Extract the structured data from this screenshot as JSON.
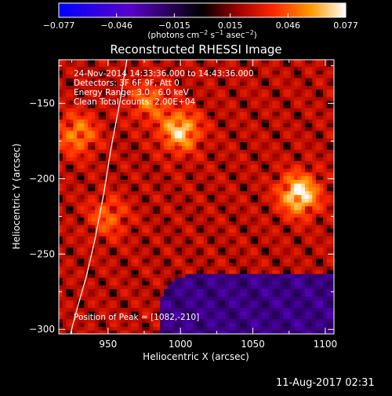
{
  "colorbar": {
    "tick_labels": [
      "−0.077",
      "−0.046",
      "−0.015",
      "0.015",
      "0.046",
      "0.077"
    ],
    "tick_values": [
      -0.077,
      -0.046,
      -0.015,
      0.015,
      0.046,
      0.077
    ],
    "range": [
      -0.077,
      0.077
    ],
    "units_main": "(photons cm",
    "units_exp1": "−2",
    "units_mid": " s",
    "units_exp2": "−1",
    "units_end": " asec",
    "units_exp3": "−2",
    "units_close": ")"
  },
  "chart_data": {
    "type": "heatmap",
    "title": "Reconstructed RHESSI Image",
    "xlabel": "Heliocentric X (arcsec)",
    "ylabel": "Heliocentric Y (arcsec)",
    "xlim": [
      916,
      1106
    ],
    "ylim": [
      -303,
      -121
    ],
    "x_ticks": [
      950,
      1000,
      1050,
      1100
    ],
    "y_ticks": [
      -300,
      -250,
      -200,
      -150
    ],
    "x_tick_labels": [
      "950",
      "1000",
      "1050",
      "1100"
    ],
    "y_tick_labels": [
      "−300",
      "−250",
      "−200",
      "−150"
    ],
    "peak": [
      1082,
      -210
    ],
    "bright_sources": [
      {
        "x": 1082,
        "y": -210,
        "level": 1.0
      },
      {
        "x": 1000,
        "y": -168,
        "level": 0.85
      },
      {
        "x": 929,
        "y": -170,
        "level": 0.6
      },
      {
        "x": 978,
        "y": -148,
        "level": 0.5
      },
      {
        "x": 950,
        "y": -225,
        "level": 0.45
      }
    ],
    "limb_curve_x": [
      963,
      958,
      952,
      947,
      941,
      935,
      929,
      924
    ],
    "limb_curve_y": [
      -121,
      -150,
      -180,
      -210,
      -240,
      -265,
      -285,
      -303
    ]
  },
  "info": {
    "line1": "24-Nov-2014 14:33:36.000 to 14:43:36.000",
    "line2": "Detectors: 3F 6F 9F, Att 0",
    "line3": "Energy Range: 3.0 - 6.0 keV",
    "line4": "Clean     Total counts: 2.00E+04",
    "peak_text": "Position of Peak = [1082,-210]"
  },
  "footer": {
    "date_stamp": "11-Aug-2017 02:31"
  }
}
